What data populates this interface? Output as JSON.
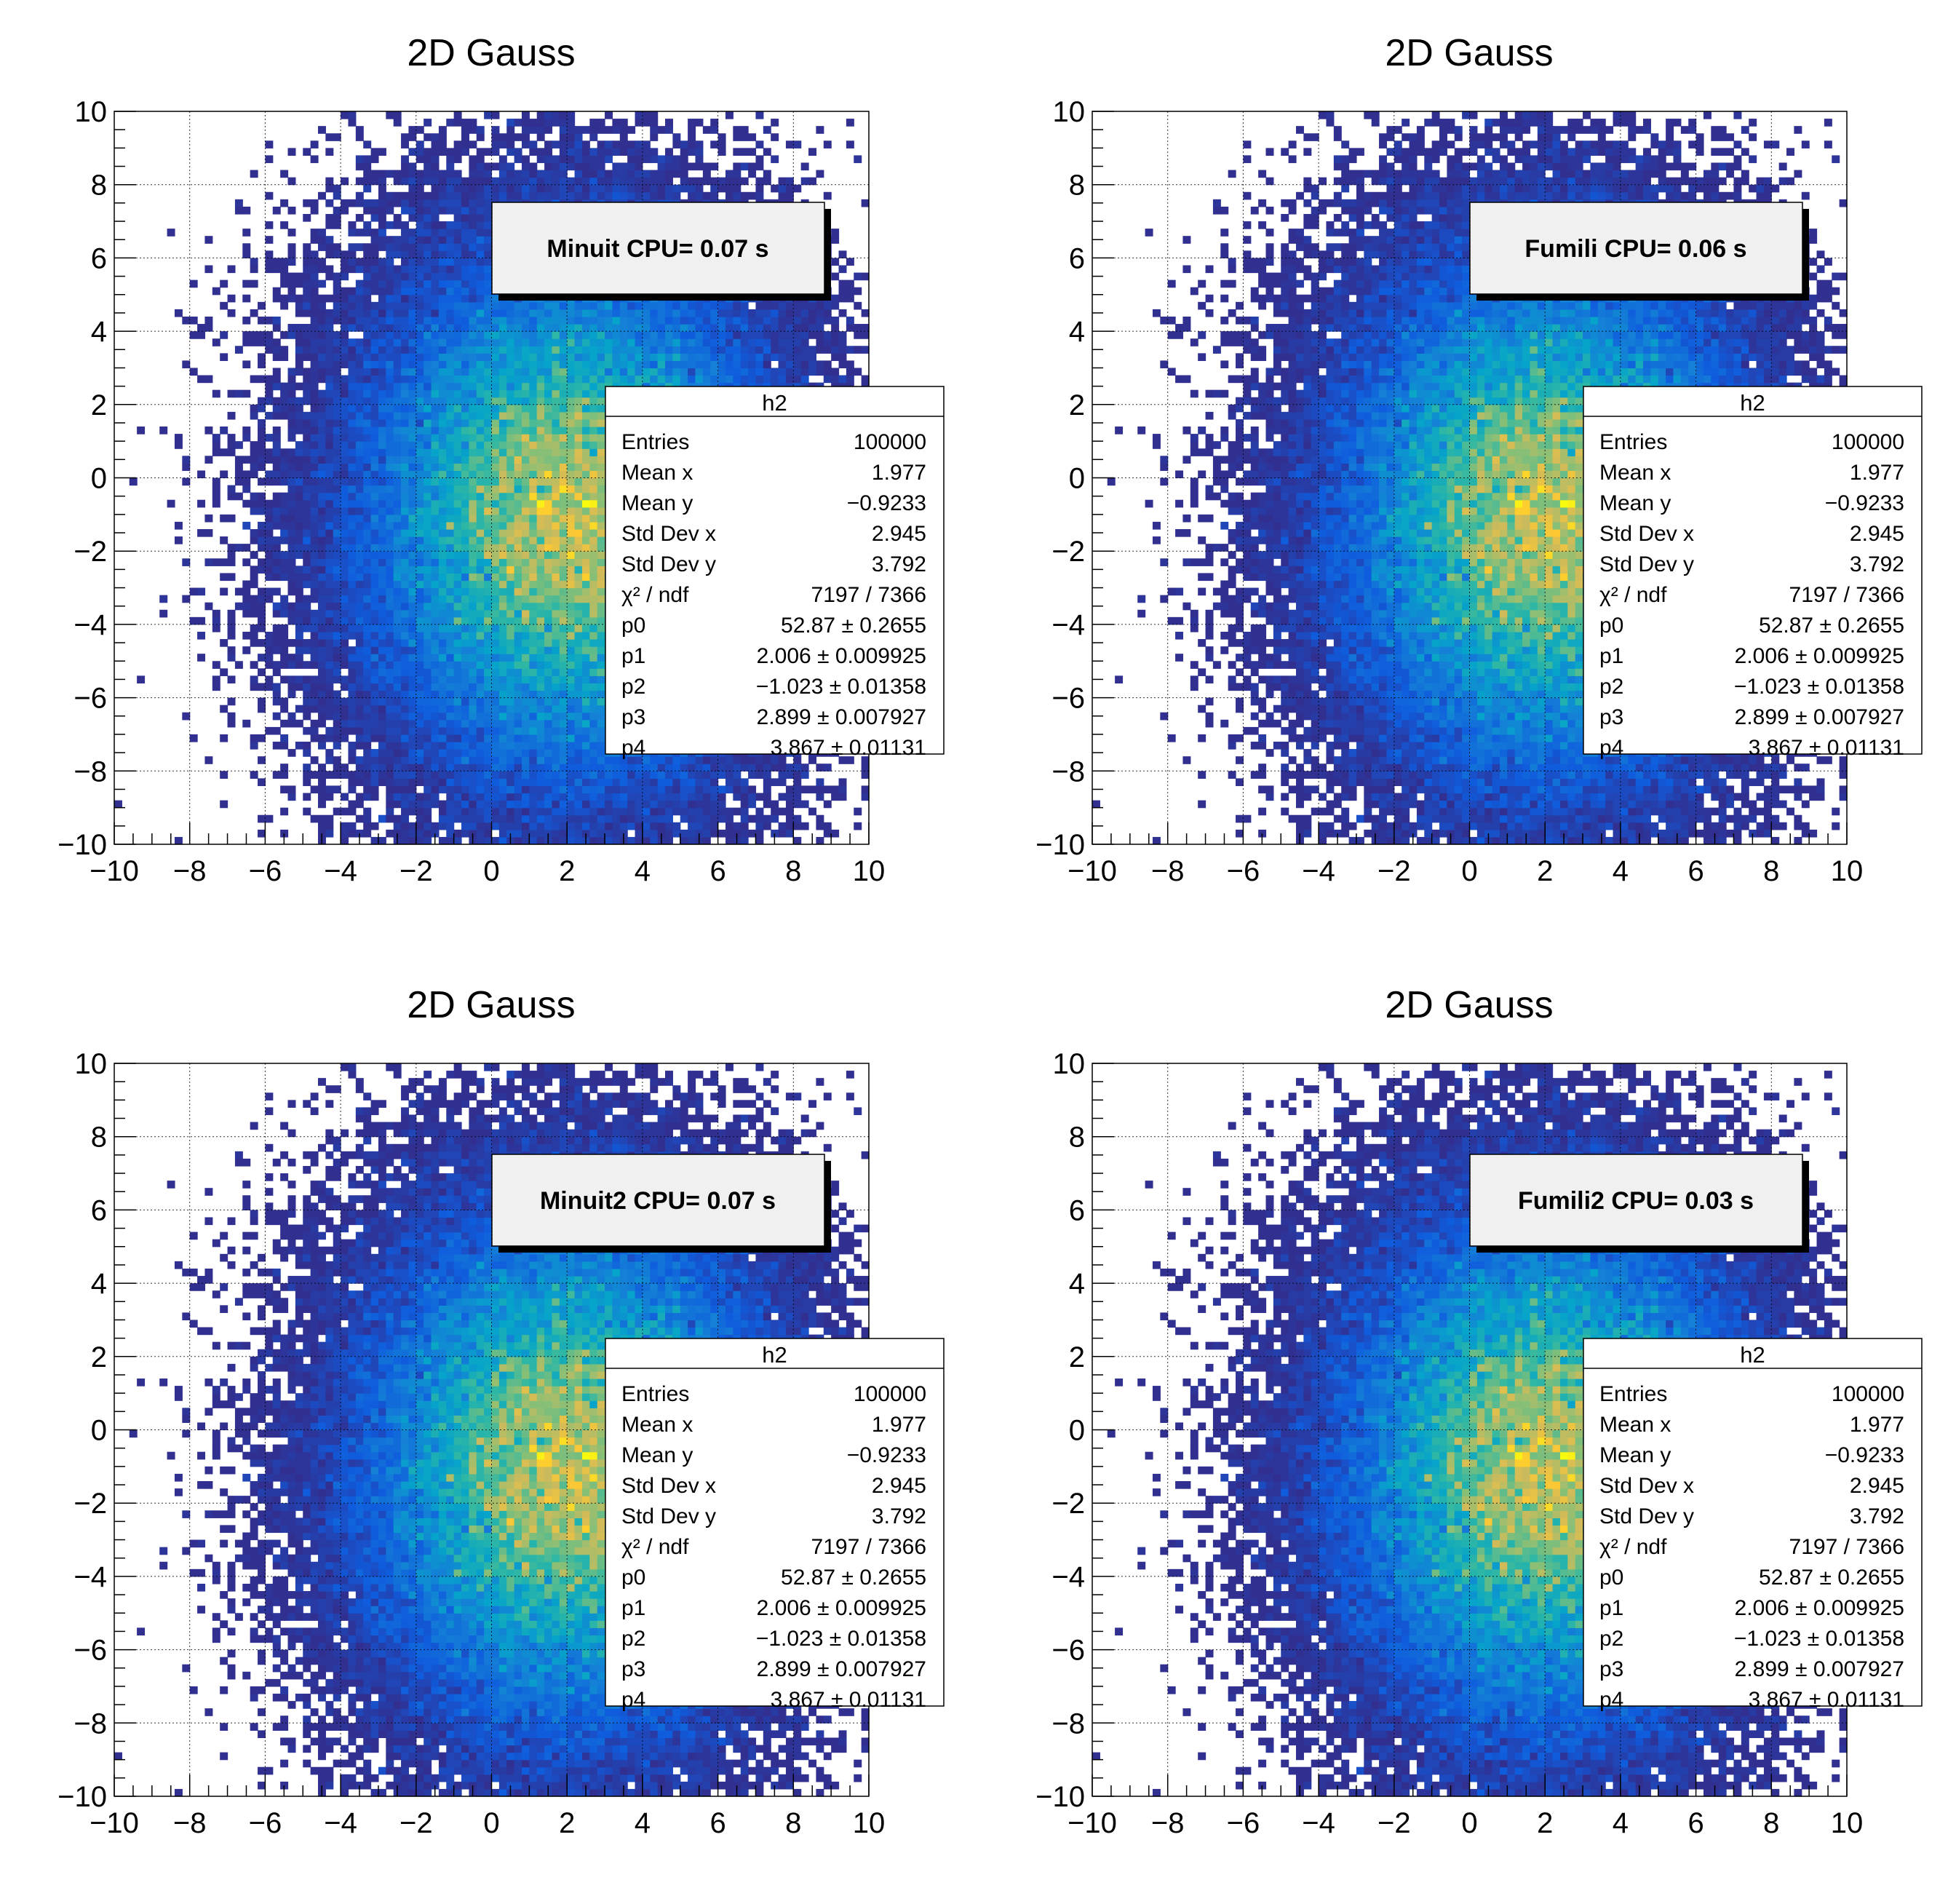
{
  "chart_data": [
    {
      "type": "heatmap",
      "title": "2D Gauss",
      "xlim": [
        -10,
        10
      ],
      "ylim": [
        -10,
        10
      ],
      "bins": {
        "nx": 100,
        "ny": 100
      },
      "xticks": [
        "−10",
        "−8",
        "−6",
        "−4",
        "−2",
        "0",
        "2",
        "4",
        "6",
        "8",
        "10"
      ],
      "yticks": [
        "−10",
        "−8",
        "−6",
        "−4",
        "−2",
        "0",
        "2",
        "4",
        "6",
        "8",
        "10"
      ],
      "grid": true,
      "cpu_label": "Minuit CPU= 0.07 s",
      "stats": {
        "name": "h2",
        "rows": [
          {
            "label": "Entries",
            "value": "100000"
          },
          {
            "label": "Mean x",
            "value": "1.977"
          },
          {
            "label": "Mean y",
            "value": "−0.9233"
          },
          {
            "label": "Std Dev x",
            "value": "2.945"
          },
          {
            "label": "Std Dev y",
            "value": "3.792"
          },
          {
            "label": "χ² / ndf",
            "value": "7197 / 7366"
          },
          {
            "label": "p0",
            "value": "52.87 ± 0.2655"
          },
          {
            "label": "p1",
            "value": "2.006 ± 0.009925"
          },
          {
            "label": "p2",
            "value": "−1.023 ± 0.01358"
          },
          {
            "label": "p3",
            "value": "2.899 ± 0.007927"
          },
          {
            "label": "p4",
            "value": "3.867 ± 0.01131"
          }
        ]
      },
      "model": {
        "p0": 52.87,
        "p1": 2.006,
        "p2": -1.023,
        "p3": 2.899,
        "p4": 3.867
      }
    },
    {
      "type": "heatmap",
      "title": "2D Gauss",
      "xlim": [
        -10,
        10
      ],
      "ylim": [
        -10,
        10
      ],
      "bins": {
        "nx": 100,
        "ny": 100
      },
      "xticks": [
        "−10",
        "−8",
        "−6",
        "−4",
        "−2",
        "0",
        "2",
        "4",
        "6",
        "8",
        "10"
      ],
      "yticks": [
        "−10",
        "−8",
        "−6",
        "−4",
        "−2",
        "0",
        "2",
        "4",
        "6",
        "8",
        "10"
      ],
      "grid": true,
      "cpu_label": "Fumili CPU= 0.06 s",
      "stats": {
        "name": "h2",
        "rows": [
          {
            "label": "Entries",
            "value": "100000"
          },
          {
            "label": "Mean x",
            "value": "1.977"
          },
          {
            "label": "Mean y",
            "value": "−0.9233"
          },
          {
            "label": "Std Dev x",
            "value": "2.945"
          },
          {
            "label": "Std Dev y",
            "value": "3.792"
          },
          {
            "label": "χ² / ndf",
            "value": "7197 / 7366"
          },
          {
            "label": "p0",
            "value": "52.87 ± 0.2655"
          },
          {
            "label": "p1",
            "value": "2.006 ± 0.009925"
          },
          {
            "label": "p2",
            "value": "−1.023 ± 0.01358"
          },
          {
            "label": "p3",
            "value": "2.899 ± 0.007927"
          },
          {
            "label": "p4",
            "value": "3.867 ± 0.01131"
          }
        ]
      },
      "model": {
        "p0": 52.87,
        "p1": 2.006,
        "p2": -1.023,
        "p3": 2.899,
        "p4": 3.867
      }
    },
    {
      "type": "heatmap",
      "title": "2D Gauss",
      "xlim": [
        -10,
        10
      ],
      "ylim": [
        -10,
        10
      ],
      "bins": {
        "nx": 100,
        "ny": 100
      },
      "xticks": [
        "−10",
        "−8",
        "−6",
        "−4",
        "−2",
        "0",
        "2",
        "4",
        "6",
        "8",
        "10"
      ],
      "yticks": [
        "−10",
        "−8",
        "−6",
        "−4",
        "−2",
        "0",
        "2",
        "4",
        "6",
        "8",
        "10"
      ],
      "grid": true,
      "cpu_label": "Minuit2 CPU= 0.07 s",
      "stats": {
        "name": "h2",
        "rows": [
          {
            "label": "Entries",
            "value": "100000"
          },
          {
            "label": "Mean x",
            "value": "1.977"
          },
          {
            "label": "Mean y",
            "value": "−0.9233"
          },
          {
            "label": "Std Dev x",
            "value": "2.945"
          },
          {
            "label": "Std Dev y",
            "value": "3.792"
          },
          {
            "label": "χ² / ndf",
            "value": "7197 / 7366"
          },
          {
            "label": "p0",
            "value": "52.87 ± 0.2655"
          },
          {
            "label": "p1",
            "value": "2.006 ± 0.009925"
          },
          {
            "label": "p2",
            "value": "−1.023 ± 0.01358"
          },
          {
            "label": "p3",
            "value": "2.899 ± 0.007927"
          },
          {
            "label": "p4",
            "value": "3.867 ± 0.01131"
          }
        ]
      },
      "model": {
        "p0": 52.87,
        "p1": 2.006,
        "p2": -1.023,
        "p3": 2.899,
        "p4": 3.867
      }
    },
    {
      "type": "heatmap",
      "title": "2D Gauss",
      "xlim": [
        -10,
        10
      ],
      "ylim": [
        -10,
        10
      ],
      "bins": {
        "nx": 100,
        "ny": 100
      },
      "xticks": [
        "−10",
        "−8",
        "−6",
        "−4",
        "−2",
        "0",
        "2",
        "4",
        "6",
        "8",
        "10"
      ],
      "yticks": [
        "−10",
        "−8",
        "−6",
        "−4",
        "−2",
        "0",
        "2",
        "4",
        "6",
        "8",
        "10"
      ],
      "grid": true,
      "cpu_label": "Fumili2 CPU= 0.03 s",
      "stats": {
        "name": "h2",
        "rows": [
          {
            "label": "Entries",
            "value": "100000"
          },
          {
            "label": "Mean x",
            "value": "1.977"
          },
          {
            "label": "Mean y",
            "value": "−0.9233"
          },
          {
            "label": "Std Dev x",
            "value": "2.945"
          },
          {
            "label": "Std Dev y",
            "value": "3.792"
          },
          {
            "label": "χ² / ndf",
            "value": "7197 / 7366"
          },
          {
            "label": "p0",
            "value": "52.87 ± 0.2655"
          },
          {
            "label": "p1",
            "value": "2.006 ± 0.009925"
          },
          {
            "label": "p2",
            "value": "−1.023 ± 0.01358"
          },
          {
            "label": "p3",
            "value": "2.899 ± 0.007927"
          },
          {
            "label": "p4",
            "value": "3.867 ± 0.01131"
          }
        ]
      },
      "model": {
        "p0": 52.87,
        "p1": 2.006,
        "p2": -1.023,
        "p3": 2.899,
        "p4": 3.867
      }
    }
  ],
  "colors": {
    "palette_low": "#35298a",
    "palette_high": "#f9fb0e",
    "cpu_box": "#f0f0f0"
  }
}
